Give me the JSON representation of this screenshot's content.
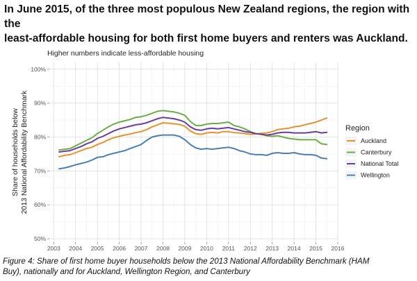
{
  "headline_line1": "In June 2015, of the three most populous New Zealand regions, the region with the",
  "headline_line2": "least-affordable housing for both first home buyers and renters was Auckland.",
  "caption_line1": "Figure 4: Share of first home buyer households below the 2013 National Affordability Benchmark (HAM",
  "caption_line2": "Buy), nationally and for Auckland, Wellington Region, and Canterbury",
  "chart_data": {
    "type": "line",
    "subtitle": "Higher numbers indicate less-affordable housing",
    "ylabel_line1": "Share of households below",
    "ylabel_line2": "2013 National Affordability Benchmark",
    "xlabel": "",
    "xlim": [
      2002.8,
      2016.0
    ],
    "ylim": [
      49,
      102
    ],
    "x_ticks": [
      2003,
      2004,
      2005,
      2006,
      2007,
      2008,
      2009,
      2010,
      2011,
      2012,
      2013,
      2014,
      2015,
      2016
    ],
    "x_tick_labels": [
      "2003",
      "2004",
      "2005",
      "2006",
      "2007",
      "2008",
      "2009",
      "2010",
      "2011",
      "2012",
      "2013",
      "2014",
      "2015",
      "2016"
    ],
    "y_ticks": [
      50,
      60,
      70,
      80,
      90,
      100
    ],
    "y_tick_labels": [
      "50%",
      "60%",
      "70%",
      "80%",
      "90%",
      "100%"
    ],
    "grid": true,
    "legend_title": "Region",
    "legend_position": "right",
    "series": [
      {
        "name": "Auckland",
        "color": "#e8912d",
        "points": [
          [
            2003.25,
            74.2
          ],
          [
            2003.5,
            74.6
          ],
          [
            2003.75,
            74.8
          ],
          [
            2004.0,
            75.4
          ],
          [
            2004.25,
            76.0
          ],
          [
            2004.5,
            76.6
          ],
          [
            2004.75,
            77.0
          ],
          [
            2005.0,
            77.8
          ],
          [
            2005.25,
            78.4
          ],
          [
            2005.5,
            79.2
          ],
          [
            2005.75,
            79.8
          ],
          [
            2006.0,
            80.2
          ],
          [
            2006.25,
            80.6
          ],
          [
            2006.5,
            80.9
          ],
          [
            2006.75,
            81.3
          ],
          [
            2007.0,
            81.6
          ],
          [
            2007.25,
            82.2
          ],
          [
            2007.5,
            83.0
          ],
          [
            2007.75,
            83.6
          ],
          [
            2008.0,
            84.2
          ],
          [
            2008.25,
            84.1
          ],
          [
            2008.5,
            83.9
          ],
          [
            2008.75,
            83.7
          ],
          [
            2009.0,
            83.2
          ],
          [
            2009.25,
            81.8
          ],
          [
            2009.5,
            81.0
          ],
          [
            2009.75,
            80.8
          ],
          [
            2010.0,
            81.2
          ],
          [
            2010.25,
            81.4
          ],
          [
            2010.5,
            81.2
          ],
          [
            2010.75,
            81.6
          ],
          [
            2011.0,
            81.6
          ],
          [
            2011.25,
            81.3
          ],
          [
            2011.5,
            81.2
          ],
          [
            2011.75,
            81.0
          ],
          [
            2012.0,
            80.8
          ],
          [
            2012.25,
            80.9
          ],
          [
            2012.5,
            81.1
          ],
          [
            2012.75,
            81.2
          ],
          [
            2013.0,
            81.6
          ],
          [
            2013.25,
            82.2
          ],
          [
            2013.5,
            82.4
          ],
          [
            2013.75,
            82.6
          ],
          [
            2014.0,
            83.0
          ],
          [
            2014.25,
            83.2
          ],
          [
            2014.5,
            83.6
          ],
          [
            2014.75,
            84.0
          ],
          [
            2015.0,
            84.4
          ],
          [
            2015.25,
            85.0
          ],
          [
            2015.5,
            85.6
          ]
        ]
      },
      {
        "name": "Canterbury",
        "color": "#6aae45",
        "points": [
          [
            2003.25,
            76.2
          ],
          [
            2003.5,
            76.4
          ],
          [
            2003.75,
            76.6
          ],
          [
            2004.0,
            77.4
          ],
          [
            2004.25,
            78.2
          ],
          [
            2004.5,
            79.0
          ],
          [
            2004.75,
            79.8
          ],
          [
            2005.0,
            81.0
          ],
          [
            2005.25,
            82.0
          ],
          [
            2005.5,
            83.0
          ],
          [
            2005.75,
            83.8
          ],
          [
            2006.0,
            84.4
          ],
          [
            2006.25,
            84.8
          ],
          [
            2006.5,
            85.2
          ],
          [
            2006.75,
            85.8
          ],
          [
            2007.0,
            86.0
          ],
          [
            2007.25,
            86.4
          ],
          [
            2007.5,
            87.0
          ],
          [
            2007.75,
            87.6
          ],
          [
            2008.0,
            87.8
          ],
          [
            2008.25,
            87.6
          ],
          [
            2008.5,
            87.4
          ],
          [
            2008.75,
            87.0
          ],
          [
            2009.0,
            86.4
          ],
          [
            2009.25,
            84.6
          ],
          [
            2009.5,
            83.4
          ],
          [
            2009.75,
            83.4
          ],
          [
            2010.0,
            83.8
          ],
          [
            2010.25,
            84.0
          ],
          [
            2010.5,
            84.0
          ],
          [
            2010.75,
            84.2
          ],
          [
            2011.0,
            84.4
          ],
          [
            2011.25,
            83.4
          ],
          [
            2011.5,
            83.0
          ],
          [
            2011.75,
            82.4
          ],
          [
            2012.0,
            81.6
          ],
          [
            2012.25,
            81.0
          ],
          [
            2012.5,
            80.8
          ],
          [
            2012.75,
            80.4
          ],
          [
            2013.0,
            80.2
          ],
          [
            2013.25,
            80.4
          ],
          [
            2013.5,
            80.0
          ],
          [
            2013.75,
            79.6
          ],
          [
            2014.0,
            79.4
          ],
          [
            2014.25,
            79.2
          ],
          [
            2014.5,
            79.2
          ],
          [
            2014.75,
            79.2
          ],
          [
            2015.0,
            79.2
          ],
          [
            2015.25,
            78.0
          ],
          [
            2015.5,
            77.8
          ]
        ]
      },
      {
        "name": "National Total",
        "color": "#6a3d9a",
        "points": [
          [
            2003.25,
            75.6
          ],
          [
            2003.5,
            75.8
          ],
          [
            2003.75,
            76.0
          ],
          [
            2004.0,
            76.6
          ],
          [
            2004.25,
            77.2
          ],
          [
            2004.5,
            78.0
          ],
          [
            2004.75,
            78.6
          ],
          [
            2005.0,
            79.6
          ],
          [
            2005.25,
            80.2
          ],
          [
            2005.5,
            81.0
          ],
          [
            2005.75,
            81.8
          ],
          [
            2006.0,
            82.4
          ],
          [
            2006.25,
            82.8
          ],
          [
            2006.5,
            83.2
          ],
          [
            2006.75,
            83.6
          ],
          [
            2007.0,
            83.8
          ],
          [
            2007.25,
            84.2
          ],
          [
            2007.5,
            84.8
          ],
          [
            2007.75,
            85.4
          ],
          [
            2008.0,
            85.8
          ],
          [
            2008.25,
            85.6
          ],
          [
            2008.5,
            85.4
          ],
          [
            2008.75,
            85.0
          ],
          [
            2009.0,
            84.4
          ],
          [
            2009.25,
            83.0
          ],
          [
            2009.5,
            82.2
          ],
          [
            2009.75,
            82.0
          ],
          [
            2010.0,
            82.4
          ],
          [
            2010.25,
            82.6
          ],
          [
            2010.5,
            82.4
          ],
          [
            2010.75,
            82.6
          ],
          [
            2011.0,
            82.8
          ],
          [
            2011.25,
            82.4
          ],
          [
            2011.5,
            82.0
          ],
          [
            2011.75,
            81.6
          ],
          [
            2012.0,
            81.4
          ],
          [
            2012.25,
            81.0
          ],
          [
            2012.5,
            80.8
          ],
          [
            2012.75,
            80.6
          ],
          [
            2013.0,
            80.8
          ],
          [
            2013.25,
            81.2
          ],
          [
            2013.5,
            81.4
          ],
          [
            2013.75,
            81.4
          ],
          [
            2014.0,
            81.2
          ],
          [
            2014.25,
            81.2
          ],
          [
            2014.5,
            81.2
          ],
          [
            2014.75,
            81.4
          ],
          [
            2015.0,
            81.6
          ],
          [
            2015.25,
            81.2
          ],
          [
            2015.5,
            81.4
          ]
        ]
      },
      {
        "name": "Wellington",
        "color": "#4a7fb5",
        "points": [
          [
            2003.25,
            70.6
          ],
          [
            2003.5,
            70.9
          ],
          [
            2003.75,
            71.3
          ],
          [
            2004.0,
            71.8
          ],
          [
            2004.25,
            72.2
          ],
          [
            2004.5,
            72.6
          ],
          [
            2004.75,
            73.2
          ],
          [
            2005.0,
            74.0
          ],
          [
            2005.25,
            74.2
          ],
          [
            2005.5,
            74.8
          ],
          [
            2005.75,
            75.2
          ],
          [
            2006.0,
            75.6
          ],
          [
            2006.25,
            76.0
          ],
          [
            2006.5,
            76.6
          ],
          [
            2006.75,
            77.2
          ],
          [
            2007.0,
            77.8
          ],
          [
            2007.25,
            79.0
          ],
          [
            2007.5,
            80.0
          ],
          [
            2007.75,
            80.4
          ],
          [
            2008.0,
            80.6
          ],
          [
            2008.25,
            80.6
          ],
          [
            2008.5,
            80.6
          ],
          [
            2008.75,
            80.2
          ],
          [
            2009.0,
            79.2
          ],
          [
            2009.25,
            77.8
          ],
          [
            2009.5,
            76.8
          ],
          [
            2009.75,
            76.4
          ],
          [
            2010.0,
            76.6
          ],
          [
            2010.25,
            76.4
          ],
          [
            2010.5,
            76.6
          ],
          [
            2010.75,
            76.8
          ],
          [
            2011.0,
            77.0
          ],
          [
            2011.25,
            76.6
          ],
          [
            2011.5,
            76.0
          ],
          [
            2011.75,
            75.6
          ],
          [
            2012.0,
            75.0
          ],
          [
            2012.25,
            74.8
          ],
          [
            2012.5,
            74.8
          ],
          [
            2012.75,
            74.6
          ],
          [
            2013.0,
            75.2
          ],
          [
            2013.25,
            75.4
          ],
          [
            2013.5,
            75.2
          ],
          [
            2013.75,
            75.2
          ],
          [
            2014.0,
            75.4
          ],
          [
            2014.25,
            75.0
          ],
          [
            2014.5,
            74.8
          ],
          [
            2014.75,
            74.8
          ],
          [
            2015.0,
            74.6
          ],
          [
            2015.25,
            73.8
          ],
          [
            2015.5,
            73.6
          ]
        ]
      }
    ]
  }
}
